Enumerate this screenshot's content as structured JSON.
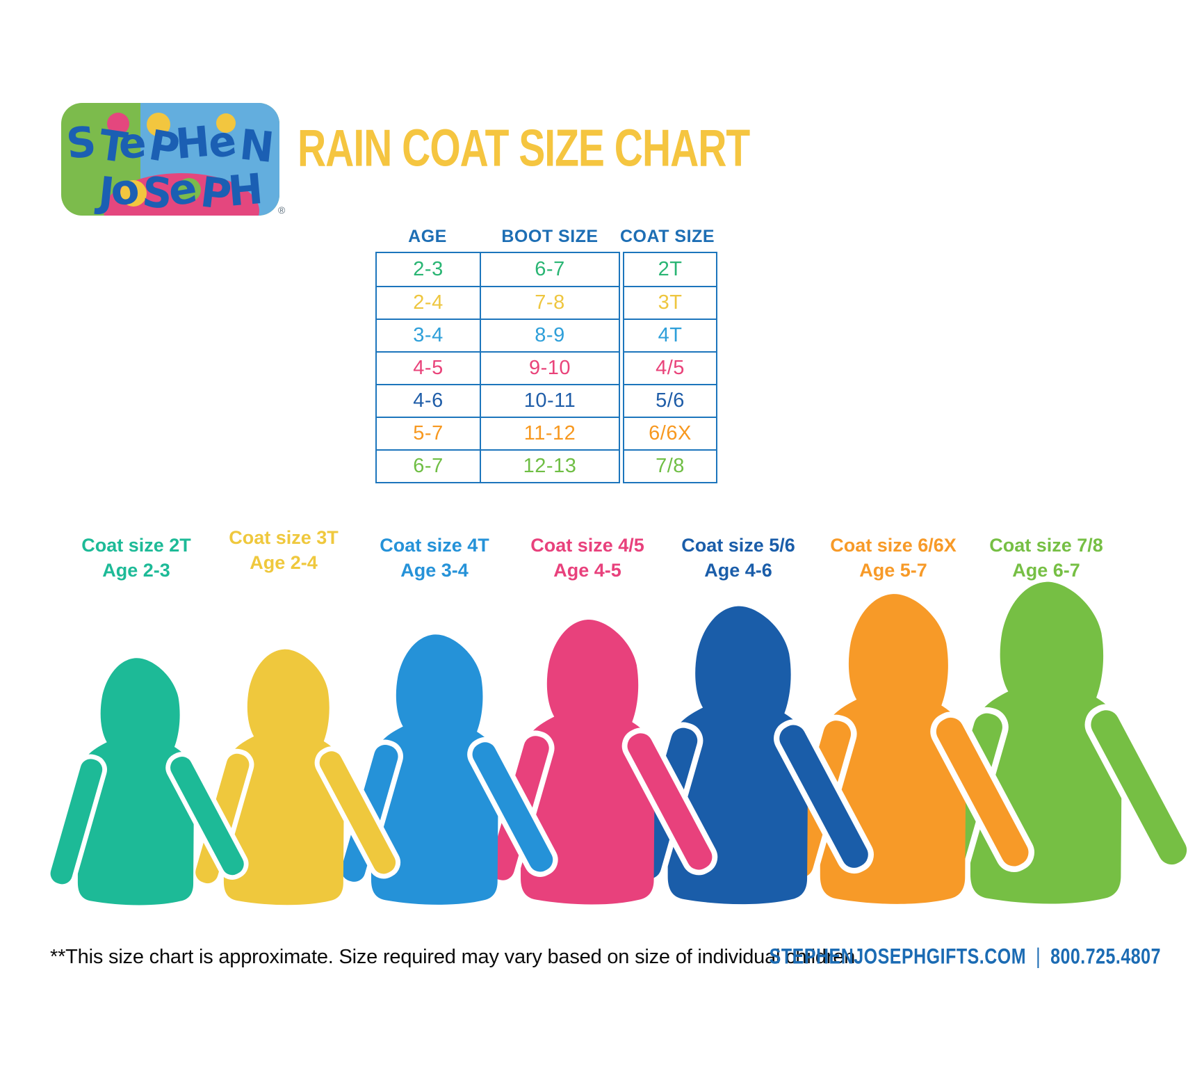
{
  "logo": {
    "line1": "STePHeN",
    "line2": "JoSePH",
    "registered": "®"
  },
  "title": "RAIN COAT SIZE CHART",
  "size_table": {
    "headers": [
      "AGE",
      "BOOT SIZE",
      "COAT SIZE"
    ],
    "rows": [
      {
        "age": "2-3",
        "boot_size": "6-7",
        "coat_size": "2T",
        "color": "#29B573"
      },
      {
        "age": "2-4",
        "boot_size": "7-8",
        "coat_size": "3T",
        "color": "#EEC63F"
      },
      {
        "age": "3-4",
        "boot_size": "8-9",
        "coat_size": "4T",
        "color": "#2E9FD9"
      },
      {
        "age": "4-5",
        "boot_size": "9-10",
        "coat_size": "4/5",
        "color": "#E9437A"
      },
      {
        "age": "4-6",
        "boot_size": "10-11",
        "coat_size": "5/6",
        "color": "#1F5DA8"
      },
      {
        "age": "5-7",
        "boot_size": "11-12",
        "coat_size": "6/6X",
        "color": "#F7981F"
      },
      {
        "age": "6-7",
        "boot_size": "12-13",
        "coat_size": "7/8",
        "color": "#6FBE44"
      }
    ]
  },
  "coats": [
    {
      "size_label": "Coat size 2T",
      "age_label": "Age 2-3",
      "color": "#1DBA97"
    },
    {
      "size_label": "Coat size 3T",
      "age_label": "Age 2-4",
      "color": "#EFC83D"
    },
    {
      "size_label": "Coat size 4T",
      "age_label": "Age 3-4",
      "color": "#2592D8"
    },
    {
      "size_label": "Coat size 4/5",
      "age_label": "Age 4-5",
      "color": "#E8417C"
    },
    {
      "size_label": "Coat size 5/6",
      "age_label": "Age 4-6",
      "color": "#1A5DA9"
    },
    {
      "size_label": "Coat size 6/6X",
      "age_label": "Age 5-7",
      "color": "#F79A28"
    },
    {
      "size_label": "Coat size 7/8",
      "age_label": "Age 6-7",
      "color": "#76BF44"
    }
  ],
  "footer": {
    "note": "**This size chart is approximate. Size required may vary based on size of individual children.",
    "website": "STEPHENJOSEPHGIFTS.COM",
    "separator": "|",
    "phone": "800.725.4807"
  },
  "colors": {
    "title_yellow": "#F5C540",
    "table_border_blue": "#1C75BC",
    "table_header_blue": "#1D6EB4",
    "footer_blue": "#1B6BB3",
    "logo_letter_blue": "#1B5FB3",
    "logo_green": "#7CBB4C",
    "logo_light_blue": "#63AEDE",
    "logo_pink": "#E4477E",
    "logo_yellow": "#F2C63F"
  },
  "chart_data": {
    "type": "table",
    "title": "RAIN COAT SIZE CHART",
    "columns": [
      "AGE",
      "BOOT SIZE",
      "COAT SIZE"
    ],
    "rows": [
      [
        "2-3",
        "6-7",
        "2T"
      ],
      [
        "2-4",
        "7-8",
        "3T"
      ],
      [
        "3-4",
        "8-9",
        "4T"
      ],
      [
        "4-5",
        "9-10",
        "4/5"
      ],
      [
        "4-6",
        "10-11",
        "5/6"
      ],
      [
        "5-7",
        "11-12",
        "6/6X"
      ],
      [
        "6-7",
        "12-13",
        "7/8"
      ]
    ]
  }
}
